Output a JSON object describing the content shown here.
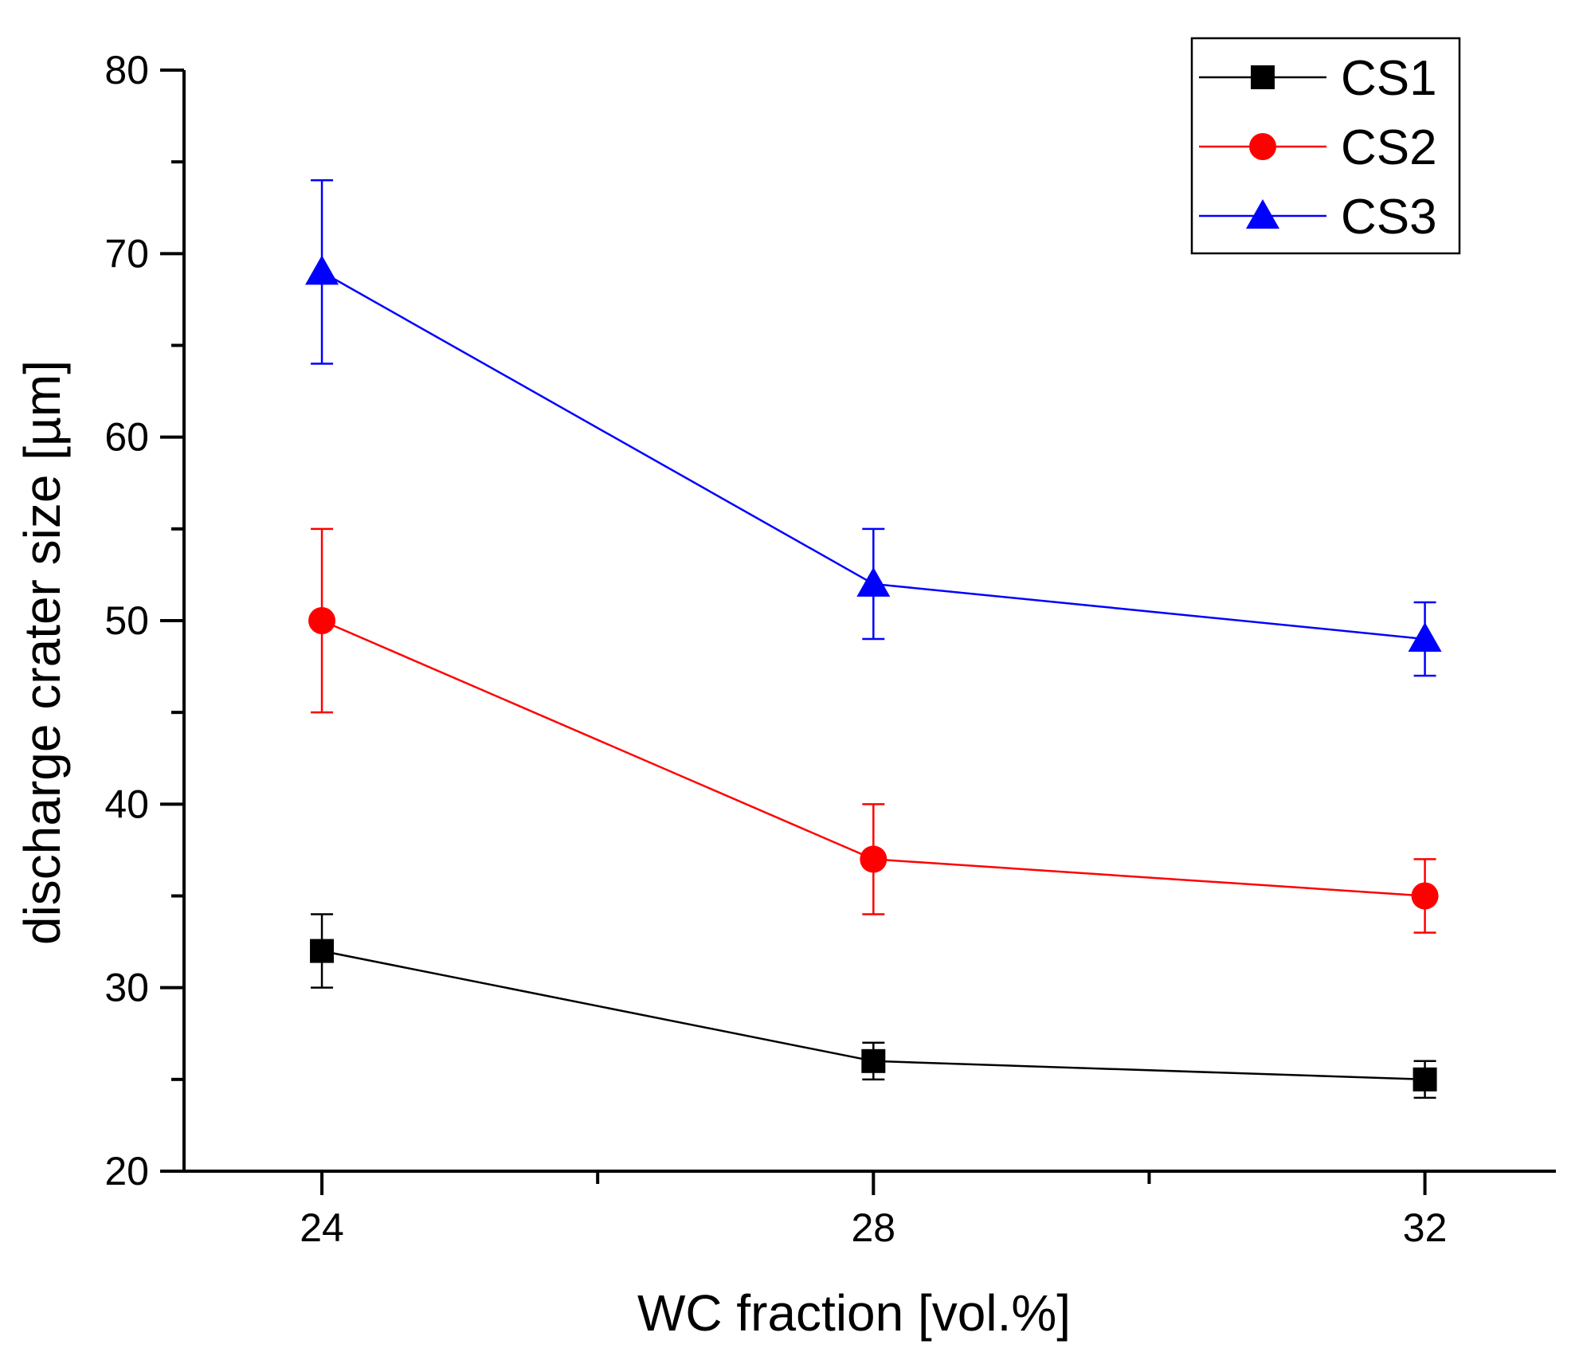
{
  "chart_data": {
    "type": "line",
    "title": "",
    "xlabel": "WC fraction [vol.%]",
    "ylabel": "discharge crater size [µm]",
    "x": [
      24,
      28,
      32
    ],
    "xlim": [
      23,
      32.95
    ],
    "ylim": [
      20,
      80
    ],
    "xticks": [
      24,
      28,
      32
    ],
    "xtick_labels": [
      "24",
      "28",
      "32"
    ],
    "xminor_ticks": [
      26,
      30
    ],
    "yticks": [
      20,
      30,
      40,
      50,
      60,
      70,
      80
    ],
    "ytick_labels": [
      "20",
      "30",
      "40",
      "50",
      "60",
      "70",
      "80"
    ],
    "yminor_ticks": [
      25,
      35,
      45,
      55,
      65,
      75
    ],
    "grid": false,
    "legend_position": "top-right",
    "series": [
      {
        "name": "CS1",
        "color": "#000000",
        "marker": "square",
        "values": [
          32,
          26,
          25
        ],
        "errors": [
          2,
          1,
          1
        ]
      },
      {
        "name": "CS2",
        "color": "#ff0000",
        "marker": "circle",
        "values": [
          50,
          37,
          35
        ],
        "errors": [
          5,
          3,
          2
        ]
      },
      {
        "name": "CS3",
        "color": "#0000ff",
        "marker": "triangle",
        "values": [
          69,
          52,
          49
        ],
        "errors": [
          5,
          3,
          2
        ]
      }
    ]
  }
}
